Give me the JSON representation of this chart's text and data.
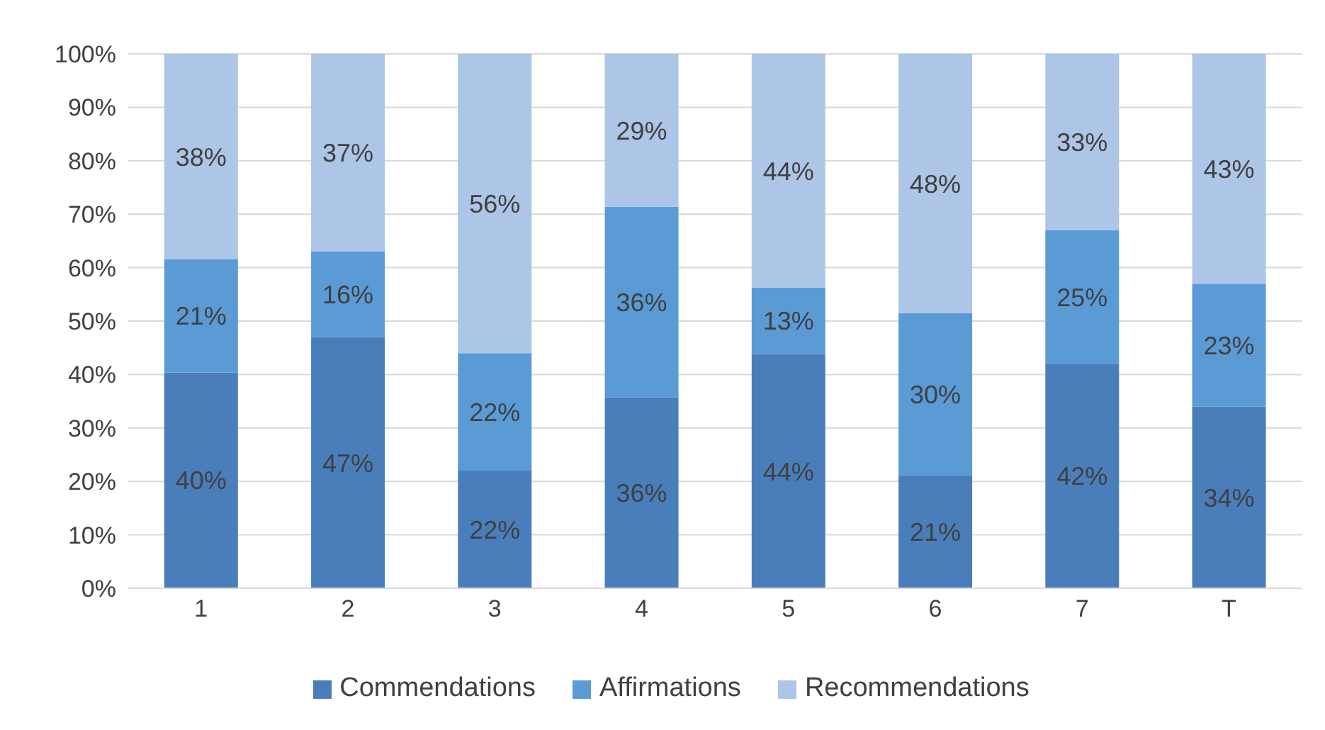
{
  "chart_data": {
    "type": "bar",
    "stacked": true,
    "categories": [
      "1",
      "2",
      "3",
      "4",
      "5",
      "6",
      "7",
      "T"
    ],
    "series": [
      {
        "name": "Commendations",
        "color": "#4a7ebb",
        "values": [
          40.4,
          47,
          22,
          35.7,
          43.8,
          21.2,
          42,
          34
        ],
        "value_labels": [
          "40%",
          "47%",
          "22%",
          "36%",
          "44%",
          "21%",
          "42%",
          "34%"
        ]
      },
      {
        "name": "Affirmations",
        "color": "#5b9bd5",
        "values": [
          21.2,
          16,
          22,
          35.7,
          12.5,
          30.3,
          25,
          23
        ],
        "value_labels": [
          "21%",
          "16%",
          "22%",
          "36%",
          "13%",
          "30%",
          "25%",
          "23%"
        ]
      },
      {
        "name": "Recommendations",
        "color": "#adc5e7",
        "values": [
          38.4,
          37,
          56,
          28.6,
          43.7,
          48.5,
          33,
          43
        ],
        "value_labels": [
          "38%",
          "37%",
          "56%",
          "29%",
          "44%",
          "48%",
          "33%",
          "43%"
        ]
      }
    ],
    "ylim": [
      0,
      100
    ],
    "yticks": [
      {
        "value": 0,
        "label": "0%"
      },
      {
        "value": 10,
        "label": "10%"
      },
      {
        "value": 20,
        "label": "20%"
      },
      {
        "value": 30,
        "label": "30%"
      },
      {
        "value": 40,
        "label": "40%"
      },
      {
        "value": 50,
        "label": "50%"
      },
      {
        "value": 60,
        "label": "60%"
      },
      {
        "value": 70,
        "label": "70%"
      },
      {
        "value": 80,
        "label": "80%"
      },
      {
        "value": 90,
        "label": "90%"
      },
      {
        "value": 100,
        "label": "100%"
      }
    ],
    "grid": "y",
    "legend": "bottom"
  }
}
